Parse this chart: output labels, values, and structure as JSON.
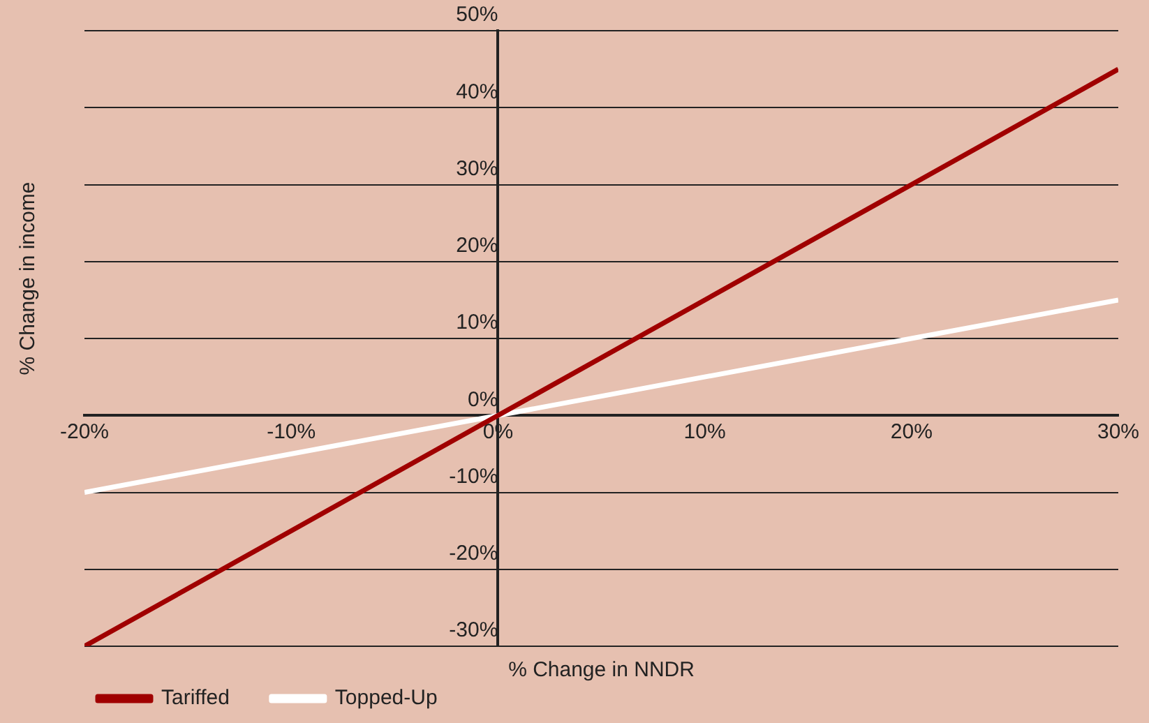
{
  "chart_data": {
    "type": "line",
    "xlabel": "% Change in NNDR",
    "ylabel": "% Change in income",
    "x": [
      -20,
      30
    ],
    "series": [
      {
        "name": "Tariffed",
        "color": "#a00000",
        "values": [
          -30,
          45
        ]
      },
      {
        "name": "Topped-Up",
        "color": "#ffffff",
        "values": [
          -10,
          15
        ]
      }
    ],
    "xlim": [
      -20,
      30
    ],
    "ylim": [
      -30,
      50
    ],
    "xticks": [
      {
        "value": -20,
        "label": "-20%"
      },
      {
        "value": -10,
        "label": "-10%"
      },
      {
        "value": 0,
        "label": "0%"
      },
      {
        "value": 10,
        "label": "10%"
      },
      {
        "value": 20,
        "label": "20%"
      },
      {
        "value": 30,
        "label": "30%"
      }
    ],
    "yticks": [
      {
        "value": -30,
        "label": "-30%"
      },
      {
        "value": -20,
        "label": "-20%"
      },
      {
        "value": -10,
        "label": "-10%"
      },
      {
        "value": 0,
        "label": "0%"
      },
      {
        "value": 10,
        "label": "10%"
      },
      {
        "value": 20,
        "label": "20%"
      },
      {
        "value": 30,
        "label": "30%"
      },
      {
        "value": 40,
        "label": "40%"
      },
      {
        "value": 50,
        "label": "50%"
      }
    ],
    "grid": "y",
    "legend": "bottom left",
    "marker": "none",
    "line_style": "solid"
  }
}
